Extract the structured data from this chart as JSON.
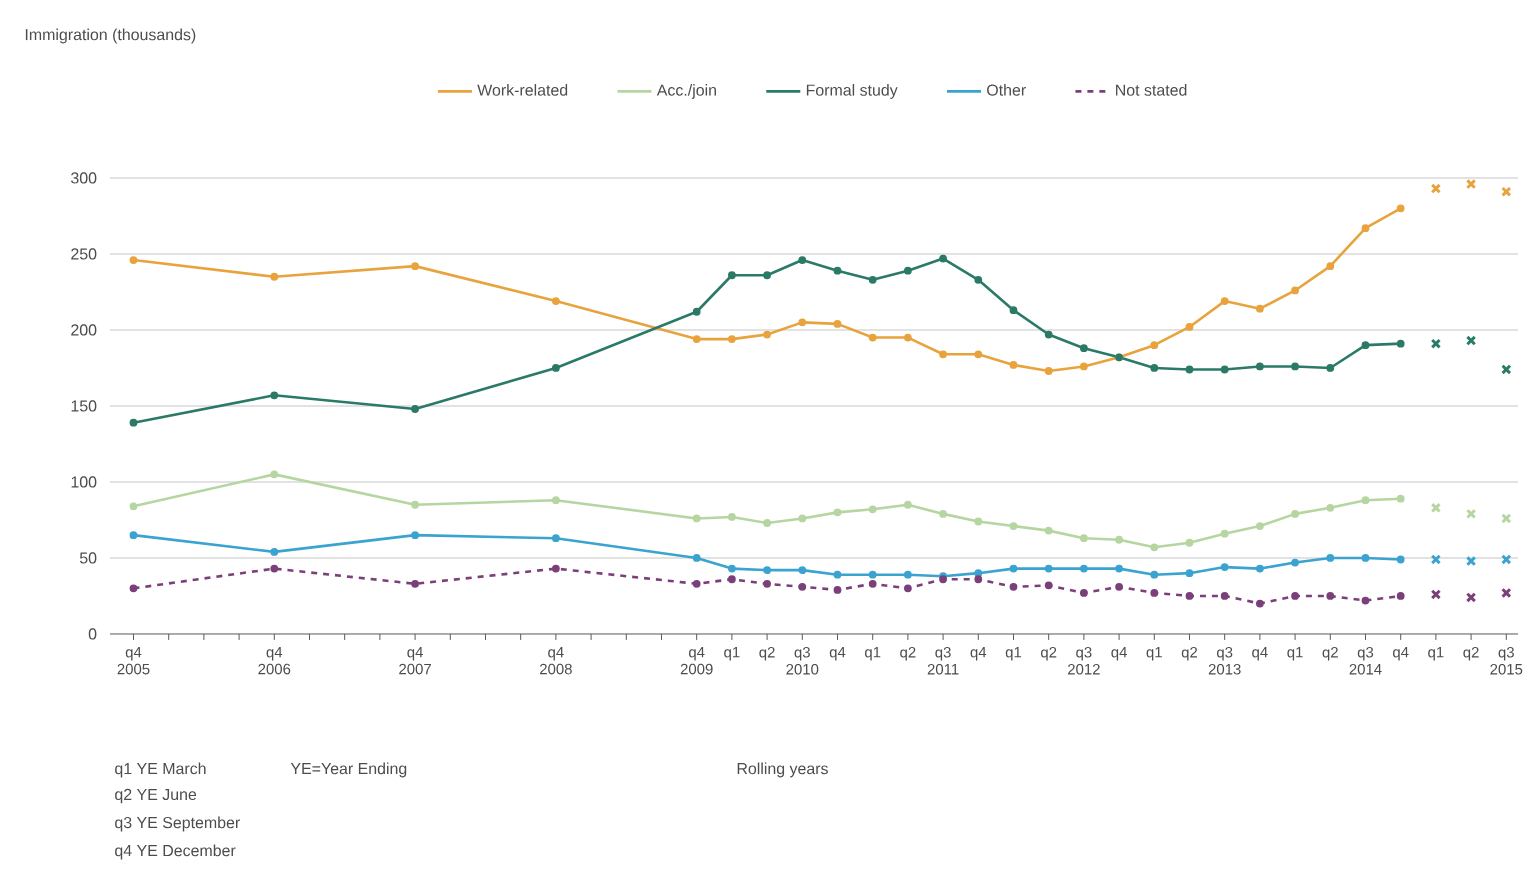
{
  "chart_data": {
    "type": "line",
    "legend": "top",
    "grid": "y",
    "marker": "circle",
    "x": [
      "2005-12",
      "2006-12",
      "2007-12",
      "2008-12",
      "2009-12",
      "2010-03",
      "2010-06",
      "2010-09",
      "2010-12",
      "2011-03",
      "2011-06",
      "2011-09",
      "2011-12",
      "2012-03",
      "2012-06",
      "2012-09",
      "2012-12",
      "2013-03",
      "2013-06",
      "2013-09",
      "2013-12",
      "2014-03",
      "2014-06",
      "2014-09",
      "2014-12"
    ],
    "xlim": [
      "2005-10",
      "2015-10"
    ],
    "xticks": [
      {
        "value": "2005-12",
        "label": "q4 2005"
      },
      {
        "value": "2006-03",
        "label": null
      },
      {
        "value": "2006-06",
        "label": null
      },
      {
        "value": "2006-09",
        "label": null
      },
      {
        "value": "2006-12",
        "label": "q4 2006"
      },
      {
        "value": "2007-03",
        "label": null
      },
      {
        "value": "2007-06",
        "label": null
      },
      {
        "value": "2007-09",
        "label": null
      },
      {
        "value": "2007-12",
        "label": "q4 2007"
      },
      {
        "value": "2008-03",
        "label": null
      },
      {
        "value": "2008-06",
        "label": null
      },
      {
        "value": "2008-09",
        "label": null
      },
      {
        "value": "2008-12",
        "label": "q4 2008"
      },
      {
        "value": "2009-03",
        "label": null
      },
      {
        "value": "2009-06",
        "label": null
      },
      {
        "value": "2009-09",
        "label": null
      },
      {
        "value": "2009-12",
        "label": "q4 2009"
      },
      {
        "value": "2010-03",
        "label": "q1"
      },
      {
        "value": "2010-06",
        "label": "q2"
      },
      {
        "value": "2010-09",
        "label": "q3 2010"
      },
      {
        "value": "2010-12",
        "label": "q4"
      },
      {
        "value": "2011-03",
        "label": "q1"
      },
      {
        "value": "2011-06",
        "label": "q2"
      },
      {
        "value": "2011-09",
        "label": "q3 2011"
      },
      {
        "value": "2011-12",
        "label": "q4"
      },
      {
        "value": "2012-03",
        "label": "q1"
      },
      {
        "value": "2012-06",
        "label": "q2"
      },
      {
        "value": "2012-09",
        "label": "q3 2012"
      },
      {
        "value": "2012-12",
        "label": "q4"
      },
      {
        "value": "2013-03",
        "label": "q1"
      },
      {
        "value": "2013-06",
        "label": "q2"
      },
      {
        "value": "2013-09",
        "label": "q3 2013"
      },
      {
        "value": "2013-12",
        "label": "q4"
      },
      {
        "value": "2014-03",
        "label": "q1"
      },
      {
        "value": "2014-06",
        "label": "q2"
      },
      {
        "value": "2014-09",
        "label": "q3 2014"
      },
      {
        "value": "2014-12",
        "label": "q4"
      },
      {
        "value": "2015-03",
        "label": "q1"
      },
      {
        "value": "2015-06",
        "label": "q2"
      },
      {
        "value": "2015-09",
        "label": "q3 2015"
      }
    ],
    "ylim": [
      0,
      300
    ],
    "yticks": [
      0,
      50,
      100,
      150,
      200,
      250,
      300
    ],
    "series": [
      {
        "name": "Work-related",
        "color": "#e8a33d",
        "values": [
          246,
          235,
          242,
          219,
          194,
          194,
          197,
          205,
          204,
          195,
          195,
          184,
          184,
          177,
          173,
          176,
          182,
          190,
          202,
          219,
          214,
          226,
          242,
          267,
          280
        ]
      },
      {
        "name": "Acc./join",
        "color": "#b5d6a0",
        "values": [
          84,
          105,
          85,
          88,
          76,
          77,
          73,
          76,
          80,
          82,
          85,
          79,
          74,
          71,
          68,
          63,
          62,
          57,
          60,
          66,
          71,
          79,
          83,
          88,
          89
        ]
      },
      {
        "name": "Formal study",
        "color": "#2b7a68",
        "values": [
          139,
          157,
          148,
          175,
          212,
          236,
          236,
          246,
          239,
          233,
          239,
          247,
          233,
          213,
          197,
          188,
          182,
          175,
          174,
          174,
          176,
          176,
          175,
          190,
          191
        ]
      },
      {
        "name": "Other",
        "color": "#3ba3d0",
        "values": [
          65,
          54,
          65,
          63,
          50,
          43,
          42,
          42,
          39,
          39,
          39,
          38,
          40,
          43,
          43,
          43,
          43,
          39,
          40,
          44,
          43,
          47,
          50,
          50,
          49
        ]
      },
      {
        "name": "Not stated",
        "color": "#7b3f7a",
        "line_style": "dashed",
        "values": [
          30,
          43,
          33,
          43,
          33,
          36,
          33,
          31,
          29,
          33,
          30,
          36,
          36,
          31,
          32,
          27,
          31,
          27,
          25,
          25,
          20,
          25,
          25,
          22,
          25
        ]
      },
      {
        "type": "scatter",
        "marker": "cross",
        "color": "#e8a33d",
        "x": [
          "2015-03",
          "2015-06",
          "2015-09"
        ],
        "values": [
          293,
          296,
          291
        ]
      },
      {
        "type": "scatter",
        "marker": "cross",
        "color": "#b5d6a0",
        "x": [
          "2015-03",
          "2015-06",
          "2015-09"
        ],
        "values": [
          83,
          79,
          76
        ]
      },
      {
        "type": "scatter",
        "marker": "cross",
        "color": "#2b7a68",
        "x": [
          "2015-03",
          "2015-06",
          "2015-09"
        ],
        "values": [
          191,
          193,
          174
        ]
      },
      {
        "type": "scatter",
        "marker": "cross",
        "color": "#3ba3d0",
        "x": [
          "2015-03",
          "2015-06",
          "2015-09"
        ],
        "values": [
          49,
          48,
          49
        ]
      },
      {
        "type": "scatter",
        "marker": "cross",
        "color": "#7b3f7a",
        "x": [
          "2015-03",
          "2015-06",
          "2015-09"
        ],
        "values": [
          26,
          24,
          27
        ]
      }
    ],
    "annotations": [
      "Immigration (thousands)",
      "q1 YE March",
      "YE=Year Ending",
      "q2 YE June",
      "q3 YE September",
      "q4 YE December",
      "Rolling years"
    ]
  }
}
